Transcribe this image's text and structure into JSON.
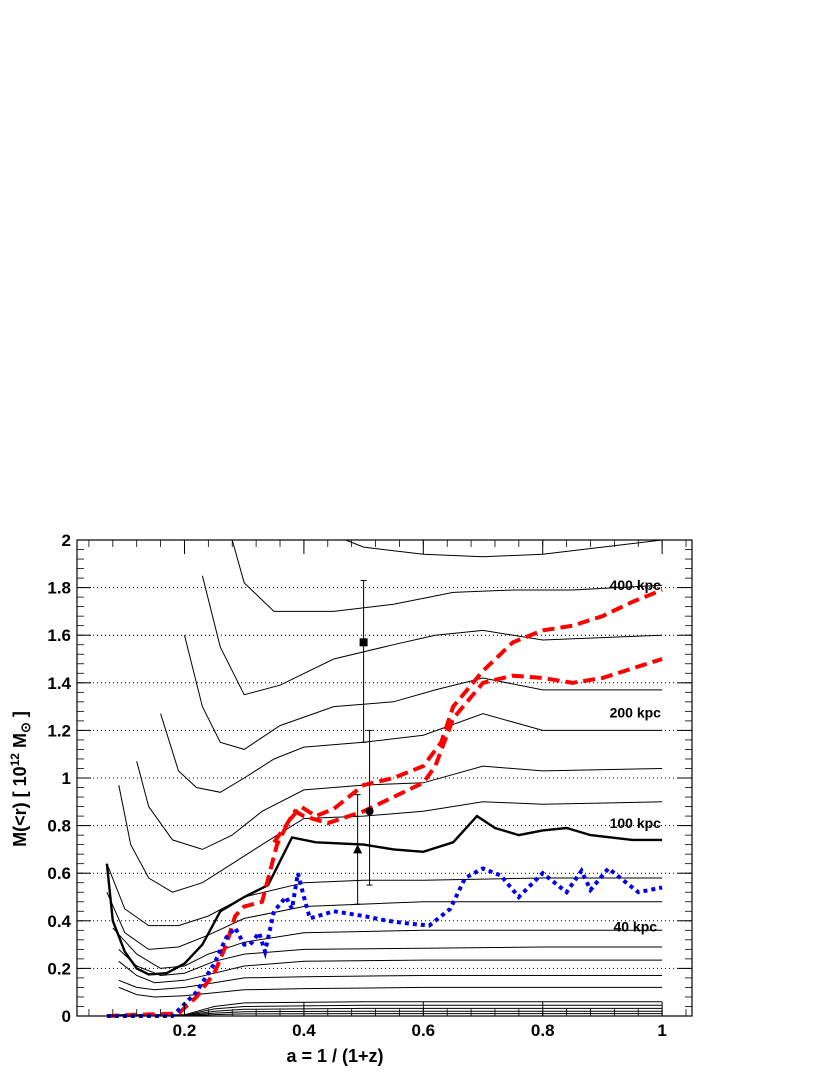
{
  "chart_data": {
    "type": "line",
    "xlabel": "a = 1 / (1+z)",
    "ylabel_main": "M(<r) [ 10",
    "ylabel_exp": "12",
    "ylabel_unit": " M",
    "ylabel_sub": "⊙",
    "ylabel_close": " ]",
    "xlim": [
      0.02,
      1.05
    ],
    "ylim": [
      0,
      2
    ],
    "x_ticks": [
      0.2,
      0.4,
      0.6,
      0.8,
      1
    ],
    "x_tick_labels": [
      "0.2",
      "0.4",
      "0.6",
      "0.8",
      "1"
    ],
    "y_ticks": [
      0,
      0.2,
      0.4,
      0.6,
      0.8,
      1,
      1.2,
      1.4,
      1.6,
      1.8,
      2
    ],
    "y_tick_labels": [
      "0",
      "0.2",
      "0.4",
      "0.6",
      "0.8",
      "1",
      "1.2",
      "1.4",
      "1.6",
      "1.8",
      "2"
    ],
    "grid": "horizontal dotted",
    "annotations": [
      {
        "text": "400 kpc",
        "x": 0.955,
        "y": 1.79
      },
      {
        "text": "200 kpc",
        "x": 0.955,
        "y": 1.255
      },
      {
        "text": "100 kpc",
        "x": 0.955,
        "y": 0.79
      },
      {
        "text": "40 kpc",
        "x": 0.955,
        "y": 0.355
      }
    ],
    "thin_profiles": [
      {
        "values": [
          [
            0.09,
            0.12
          ],
          [
            0.12,
            0.09
          ],
          [
            0.15,
            0.08
          ],
          [
            0.2,
            0.085
          ],
          [
            0.3,
            0.11
          ],
          [
            0.4,
            0.115
          ],
          [
            0.6,
            0.12
          ],
          [
            0.8,
            0.12
          ],
          [
            1,
            0.12
          ]
        ]
      },
      {
        "values": [
          [
            0.09,
            0.15
          ],
          [
            0.12,
            0.12
          ],
          [
            0.15,
            0.11
          ],
          [
            0.2,
            0.12
          ],
          [
            0.25,
            0.14
          ],
          [
            0.3,
            0.16
          ],
          [
            0.4,
            0.165
          ],
          [
            0.6,
            0.17
          ],
          [
            0.8,
            0.17
          ],
          [
            1,
            0.17
          ]
        ]
      },
      {
        "values": [
          [
            0.09,
            0.23
          ],
          [
            0.12,
            0.17
          ],
          [
            0.15,
            0.14
          ],
          [
            0.2,
            0.15
          ],
          [
            0.25,
            0.18
          ],
          [
            0.3,
            0.21
          ],
          [
            0.4,
            0.23
          ],
          [
            0.6,
            0.235
          ],
          [
            0.8,
            0.235
          ],
          [
            1,
            0.235
          ]
        ]
      },
      {
        "values": [
          [
            0.09,
            0.28
          ],
          [
            0.12,
            0.21
          ],
          [
            0.16,
            0.17
          ],
          [
            0.2,
            0.18
          ],
          [
            0.25,
            0.23
          ],
          [
            0.3,
            0.26
          ],
          [
            0.4,
            0.28
          ],
          [
            0.6,
            0.285
          ],
          [
            0.8,
            0.29
          ],
          [
            1,
            0.29
          ]
        ]
      },
      {
        "values": [
          [
            0.08,
            0.37
          ],
          [
            0.12,
            0.26
          ],
          [
            0.16,
            0.2
          ],
          [
            0.2,
            0.21
          ],
          [
            0.24,
            0.26
          ],
          [
            0.3,
            0.31
          ],
          [
            0.4,
            0.35
          ],
          [
            0.6,
            0.36
          ],
          [
            0.8,
            0.36
          ],
          [
            1,
            0.36
          ]
        ]
      },
      {
        "values": [
          [
            0.07,
            0.52
          ],
          [
            0.1,
            0.35
          ],
          [
            0.14,
            0.28
          ],
          [
            0.19,
            0.29
          ],
          [
            0.24,
            0.34
          ],
          [
            0.3,
            0.41
          ],
          [
            0.4,
            0.46
          ],
          [
            0.5,
            0.47
          ],
          [
            0.6,
            0.48
          ],
          [
            0.8,
            0.48
          ],
          [
            1,
            0.48
          ]
        ]
      },
      {
        "values": [
          [
            0.07,
            0.64
          ],
          [
            0.1,
            0.45
          ],
          [
            0.14,
            0.38
          ],
          [
            0.19,
            0.38
          ],
          [
            0.24,
            0.42
          ],
          [
            0.3,
            0.5
          ],
          [
            0.4,
            0.56
          ],
          [
            0.5,
            0.57
          ],
          [
            0.6,
            0.57
          ],
          [
            0.8,
            0.58
          ],
          [
            1,
            0.58
          ]
        ]
      },
      {
        "values": [
          [
            0.09,
            0.97
          ],
          [
            0.11,
            0.72
          ],
          [
            0.14,
            0.58
          ],
          [
            0.18,
            0.52
          ],
          [
            0.23,
            0.56
          ],
          [
            0.28,
            0.64
          ],
          [
            0.33,
            0.72
          ],
          [
            0.4,
            0.83
          ],
          [
            0.5,
            0.84
          ],
          [
            0.6,
            0.86
          ],
          [
            0.7,
            0.9
          ],
          [
            0.8,
            0.89
          ],
          [
            1,
            0.9
          ]
        ]
      },
      {
        "values": [
          [
            0.12,
            1.07
          ],
          [
            0.14,
            0.88
          ],
          [
            0.18,
            0.74
          ],
          [
            0.23,
            0.7
          ],
          [
            0.28,
            0.76
          ],
          [
            0.33,
            0.86
          ],
          [
            0.4,
            0.95
          ],
          [
            0.5,
            0.97
          ],
          [
            0.6,
            0.98
          ],
          [
            0.7,
            1.05
          ],
          [
            0.8,
            1.03
          ],
          [
            1,
            1.04
          ]
        ]
      },
      {
        "values": [
          [
            0.16,
            1.27
          ],
          [
            0.19,
            1.03
          ],
          [
            0.22,
            0.96
          ],
          [
            0.26,
            0.94
          ],
          [
            0.3,
            1.0
          ],
          [
            0.35,
            1.08
          ],
          [
            0.4,
            1.13
          ],
          [
            0.5,
            1.15
          ],
          [
            0.6,
            1.18
          ],
          [
            0.7,
            1.27
          ],
          [
            0.8,
            1.2
          ],
          [
            1,
            1.2
          ]
        ]
      },
      {
        "values": [
          [
            0.2,
            1.6
          ],
          [
            0.23,
            1.3
          ],
          [
            0.26,
            1.15
          ],
          [
            0.3,
            1.12
          ],
          [
            0.36,
            1.22
          ],
          [
            0.45,
            1.3
          ],
          [
            0.55,
            1.32
          ],
          [
            0.62,
            1.37
          ],
          [
            0.7,
            1.42
          ],
          [
            0.8,
            1.37
          ],
          [
            1,
            1.37
          ]
        ]
      },
      {
        "values": [
          [
            0.23,
            1.85
          ],
          [
            0.26,
            1.55
          ],
          [
            0.3,
            1.35
          ],
          [
            0.36,
            1.39
          ],
          [
            0.45,
            1.5
          ],
          [
            0.55,
            1.56
          ],
          [
            0.62,
            1.6
          ],
          [
            0.7,
            1.62
          ],
          [
            0.8,
            1.58
          ],
          [
            1,
            1.6
          ]
        ]
      },
      {
        "values": [
          [
            0.28,
            2.0
          ],
          [
            0.3,
            1.82
          ],
          [
            0.35,
            1.7
          ],
          [
            0.45,
            1.7
          ],
          [
            0.55,
            1.73
          ],
          [
            0.65,
            1.78
          ],
          [
            0.75,
            1.79
          ],
          [
            0.85,
            1.79
          ],
          [
            1,
            1.81
          ]
        ]
      },
      {
        "values": [
          [
            0.47,
            2.0
          ],
          [
            0.5,
            1.97
          ],
          [
            0.6,
            1.94
          ],
          [
            0.7,
            1.93
          ],
          [
            0.8,
            1.94
          ],
          [
            0.9,
            1.97
          ],
          [
            1,
            2.0
          ]
        ]
      }
    ],
    "thick_profile": {
      "name": "100 kpc",
      "values": [
        [
          0.07,
          0.64
        ],
        [
          0.08,
          0.4
        ],
        [
          0.1,
          0.27
        ],
        [
          0.12,
          0.2
        ],
        [
          0.14,
          0.175
        ],
        [
          0.17,
          0.18
        ],
        [
          0.2,
          0.22
        ],
        [
          0.23,
          0.3
        ],
        [
          0.26,
          0.44
        ],
        [
          0.3,
          0.5
        ],
        [
          0.34,
          0.55
        ],
        [
          0.36,
          0.65
        ],
        [
          0.38,
          0.75
        ],
        [
          0.42,
          0.73
        ],
        [
          0.5,
          0.72
        ],
        [
          0.55,
          0.7
        ],
        [
          0.6,
          0.69
        ],
        [
          0.65,
          0.73
        ],
        [
          0.69,
          0.84
        ],
        [
          0.72,
          0.79
        ],
        [
          0.76,
          0.76
        ],
        [
          0.8,
          0.78
        ],
        [
          0.84,
          0.79
        ],
        [
          0.88,
          0.76
        ],
        [
          0.95,
          0.74
        ],
        [
          1,
          0.74
        ]
      ]
    },
    "low_profiles": [
      {
        "values": [
          [
            0.07,
            0.005
          ],
          [
            0.2,
            0.005
          ],
          [
            0.25,
            0.04
          ],
          [
            0.3,
            0.055
          ],
          [
            0.5,
            0.06
          ],
          [
            1,
            0.06
          ]
        ]
      },
      {
        "values": [
          [
            0.07,
            0.003
          ],
          [
            0.2,
            0.003
          ],
          [
            0.25,
            0.03
          ],
          [
            0.3,
            0.04
          ],
          [
            0.5,
            0.045
          ],
          [
            1,
            0.045
          ]
        ]
      },
      {
        "values": [
          [
            0.07,
            0.002
          ],
          [
            0.2,
            0.002
          ],
          [
            0.25,
            0.02
          ],
          [
            0.3,
            0.028
          ],
          [
            0.5,
            0.032
          ],
          [
            1,
            0.032
          ]
        ]
      },
      {
        "values": [
          [
            0.07,
            0.001
          ],
          [
            0.2,
            0.001
          ],
          [
            0.25,
            0.012
          ],
          [
            0.3,
            0.018
          ],
          [
            0.5,
            0.02
          ],
          [
            1,
            0.02
          ]
        ]
      },
      {
        "values": [
          [
            0.07,
            0.0
          ],
          [
            0.2,
            0.0
          ],
          [
            0.25,
            0.006
          ],
          [
            0.3,
            0.009
          ],
          [
            0.5,
            0.01
          ],
          [
            1,
            0.01
          ]
        ]
      }
    ],
    "red_dashed_upper": {
      "color": "#ff0000",
      "values": [
        [
          0.07,
          0.0
        ],
        [
          0.12,
          0.005
        ],
        [
          0.19,
          0.01
        ],
        [
          0.22,
          0.08
        ],
        [
          0.25,
          0.18
        ],
        [
          0.27,
          0.3
        ],
        [
          0.285,
          0.42
        ],
        [
          0.3,
          0.46
        ],
        [
          0.33,
          0.48
        ],
        [
          0.355,
          0.72
        ],
        [
          0.375,
          0.82
        ],
        [
          0.395,
          0.88
        ],
        [
          0.42,
          0.84
        ],
        [
          0.45,
          0.87
        ],
        [
          0.5,
          0.97
        ],
        [
          0.55,
          1.0
        ],
        [
          0.6,
          1.05
        ],
        [
          0.63,
          1.15
        ],
        [
          0.65,
          1.3
        ],
        [
          0.7,
          1.45
        ],
        [
          0.75,
          1.57
        ],
        [
          0.8,
          1.62
        ],
        [
          0.85,
          1.64
        ],
        [
          0.9,
          1.68
        ],
        [
          0.95,
          1.74
        ],
        [
          1,
          1.79
        ]
      ]
    },
    "red_dashed_lower": {
      "color": "#ff0000",
      "values": [
        [
          0.35,
          0.73
        ],
        [
          0.37,
          0.8
        ],
        [
          0.385,
          0.86
        ],
        [
          0.4,
          0.84
        ],
        [
          0.44,
          0.81
        ],
        [
          0.5,
          0.86
        ],
        [
          0.55,
          0.92
        ],
        [
          0.6,
          0.98
        ],
        [
          0.62,
          1.05
        ],
        [
          0.65,
          1.25
        ],
        [
          0.7,
          1.4
        ],
        [
          0.75,
          1.43
        ],
        [
          0.8,
          1.42
        ],
        [
          0.85,
          1.4
        ],
        [
          0.9,
          1.42
        ],
        [
          0.95,
          1.46
        ],
        [
          1,
          1.5
        ]
      ]
    },
    "blue_dotted": {
      "color": "#0000ee",
      "values": [
        [
          0.07,
          0.0
        ],
        [
          0.18,
          0.0
        ],
        [
          0.22,
          0.1
        ],
        [
          0.25,
          0.22
        ],
        [
          0.27,
          0.33
        ],
        [
          0.285,
          0.37
        ],
        [
          0.3,
          0.3
        ],
        [
          0.31,
          0.3
        ],
        [
          0.325,
          0.35
        ],
        [
          0.335,
          0.27
        ],
        [
          0.35,
          0.44
        ],
        [
          0.37,
          0.5
        ],
        [
          0.38,
          0.45
        ],
        [
          0.39,
          0.6
        ],
        [
          0.4,
          0.5
        ],
        [
          0.41,
          0.41
        ],
        [
          0.45,
          0.44
        ],
        [
          0.5,
          0.42
        ],
        [
          0.54,
          0.4
        ],
        [
          0.57,
          0.39
        ],
        [
          0.61,
          0.38
        ],
        [
          0.645,
          0.45
        ],
        [
          0.67,
          0.58
        ],
        [
          0.7,
          0.62
        ],
        [
          0.73,
          0.59
        ],
        [
          0.76,
          0.5
        ],
        [
          0.8,
          0.6
        ],
        [
          0.84,
          0.52
        ],
        [
          0.865,
          0.61
        ],
        [
          0.88,
          0.53
        ],
        [
          0.91,
          0.62
        ],
        [
          0.96,
          0.52
        ],
        [
          1,
          0.54
        ]
      ]
    },
    "error_points": [
      {
        "marker": "square",
        "x": 0.5,
        "y": 1.57,
        "ylow": 1.15,
        "yhigh": 1.83
      },
      {
        "marker": "circle",
        "x": 0.51,
        "y": 0.86,
        "ylow": 0.55,
        "yhigh": 1.2
      },
      {
        "marker": "triangle",
        "x": 0.49,
        "y": 0.7,
        "ylow": 0.47,
        "yhigh": 0.93
      }
    ]
  }
}
